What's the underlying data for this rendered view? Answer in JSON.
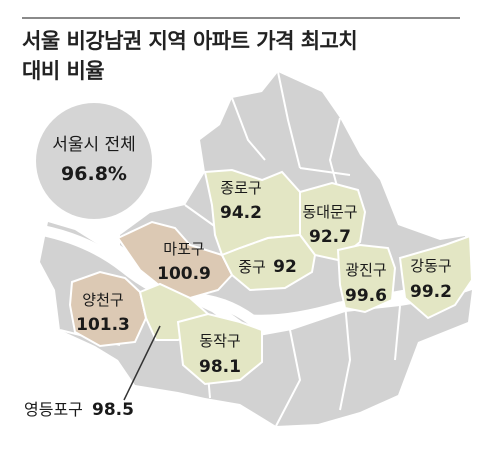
{
  "title": {
    "line1": "서울 비강남권 지역 아파트 가격 최고치",
    "line2": "대비 비율"
  },
  "summary": {
    "label": "서울시 전체",
    "value": "96.8%"
  },
  "districts": [
    {
      "id": "jongno",
      "name": "종로구",
      "value": "94.2"
    },
    {
      "id": "dongdaemun",
      "name": "동대문구",
      "value": "92.7"
    },
    {
      "id": "mapo",
      "name": "마포구",
      "value": "100.9"
    },
    {
      "id": "jung",
      "name": "중구",
      "value": "92"
    },
    {
      "id": "gwangjin",
      "name": "광진구",
      "value": "99.6"
    },
    {
      "id": "gangdong",
      "name": "강동구",
      "value": "99.2"
    },
    {
      "id": "yangcheon",
      "name": "양천구",
      "value": "101.3"
    },
    {
      "id": "dongjak",
      "name": "동작구",
      "value": "98.1"
    },
    {
      "id": "yeongdeungpo",
      "name": "영등포구",
      "value": "98.5"
    }
  ],
  "colors": {
    "over_100": "#dcc9b4",
    "under_100": "#e3e6c4",
    "other": "#d2d2d2",
    "border": "#ffffff",
    "summary_circle": "#d5d5d5"
  }
}
